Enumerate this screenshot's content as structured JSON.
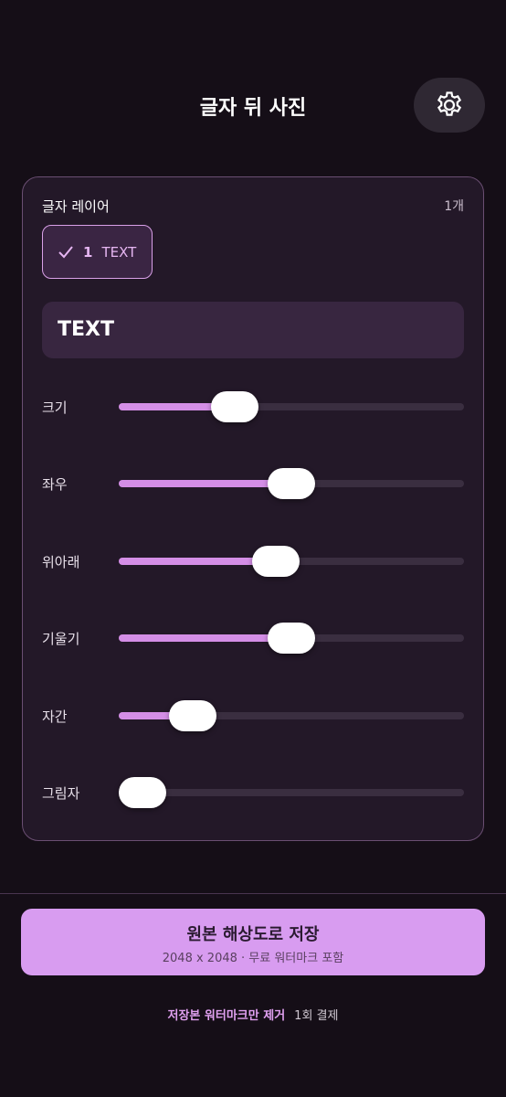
{
  "header": {
    "title": "글자 뒤 사진"
  },
  "panel": {
    "label": "글자 레이어",
    "count": "1개",
    "layer_chip": {
      "index": "1",
      "text": "TEXT"
    },
    "text_input": "TEXT",
    "sliders": [
      {
        "label": "크기"
      },
      {
        "label": "좌우"
      },
      {
        "label": "위아래"
      },
      {
        "label": "기울기"
      },
      {
        "label": "자간"
      },
      {
        "label": "그림자"
      }
    ]
  },
  "save_button": {
    "title": "원본 해상도로 저장",
    "subtitle": "2048 x 2048 · 무료 워터마크 포함"
  },
  "footer": {
    "link": "저장본 워터마크만 제거",
    "price": "1회 결제"
  }
}
